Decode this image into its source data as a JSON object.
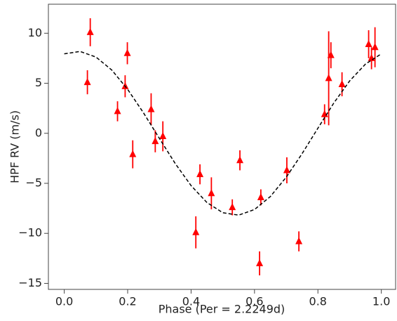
{
  "chart_data": {
    "type": "scatter",
    "xlabel": "Phase (Per = 2.2249d)",
    "ylabel": "HPF RV (m/s)",
    "xlim": [
      -0.05,
      1.045
    ],
    "ylim": [
      -15.6,
      12.9
    ],
    "xticks": [
      {
        "value": 0,
        "label": "0.0"
      },
      0.2,
      0.4,
      0.6,
      0.8,
      {
        "value": 1,
        "label": "1.0"
      }
    ],
    "yticks": [
      {
        "value": -15,
        "label": "−15"
      },
      {
        "value": -10,
        "label": "−10"
      },
      {
        "value": -5,
        "label": "−5"
      },
      0,
      5,
      10
    ],
    "series": [
      {
        "type": "errorbar",
        "color": "#ff0000",
        "x": [
          0.073,
          0.082,
          0.168,
          0.192,
          0.199,
          0.216,
          0.274,
          0.287,
          0.311,
          0.415,
          0.428,
          0.464,
          0.53,
          0.554,
          0.62,
          0.616,
          0.702,
          0.74,
          0.821,
          0.834,
          0.841,
          0.876,
          0.96,
          0.969,
          0.98
        ],
        "values": [
          5.1,
          10.1,
          2.2,
          4.7,
          8.0,
          -2.1,
          2.4,
          -0.8,
          -0.3,
          -9.9,
          -4.1,
          -6.0,
          -7.4,
          -2.7,
          -6.4,
          -13.0,
          -3.7,
          -10.8,
          1.9,
          5.5,
          7.8,
          4.9,
          8.9,
          7.5,
          8.6
        ],
        "errors": [
          1.2,
          1.4,
          1.0,
          1.1,
          1.1,
          1.4,
          1.6,
          1.1,
          1.5,
          1.6,
          1.0,
          1.6,
          0.8,
          1.0,
          0.8,
          1.2,
          1.3,
          1.0,
          1.0,
          4.7,
          1.3,
          1.2,
          1.4,
          1.1,
          2.0
        ]
      },
      {
        "type": "line",
        "color": "#000000",
        "dashed": true,
        "x": [
          0,
          0.05,
          0.1,
          0.15,
          0.2,
          0.25,
          0.3,
          0.35,
          0.4,
          0.45,
          0.5,
          0.55,
          0.6,
          0.65,
          0.7,
          0.75,
          0.8,
          0.85,
          0.9,
          0.95,
          1.0
        ],
        "values": [
          7.94,
          8.18,
          7.62,
          6.32,
          4.39,
          2.04,
          -0.51,
          -3.02,
          -5.23,
          -6.92,
          -7.94,
          -8.18,
          -7.62,
          -6.32,
          -4.39,
          -2.04,
          0.51,
          3.02,
          5.23,
          6.92,
          7.94
        ]
      }
    ]
  }
}
